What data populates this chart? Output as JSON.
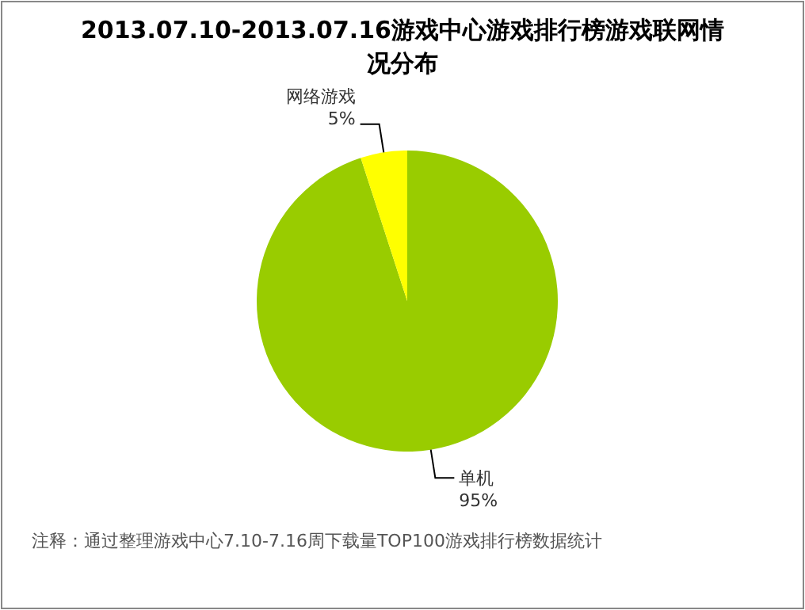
{
  "chart_data": {
    "type": "pie",
    "title": "2013.07.10-2013.07.16游戏中心游戏排行榜游戏联网情况分布",
    "categories": [
      "单机",
      "网络游戏"
    ],
    "values": [
      95,
      5
    ],
    "colors": [
      "#99cc00",
      "#ffff00"
    ],
    "value_labels": [
      "95%",
      "5%"
    ],
    "annotations": [
      "注释：通过整理游戏中心7.10-7.16周下载量TOP100游戏排行榜数据统计"
    ]
  }
}
